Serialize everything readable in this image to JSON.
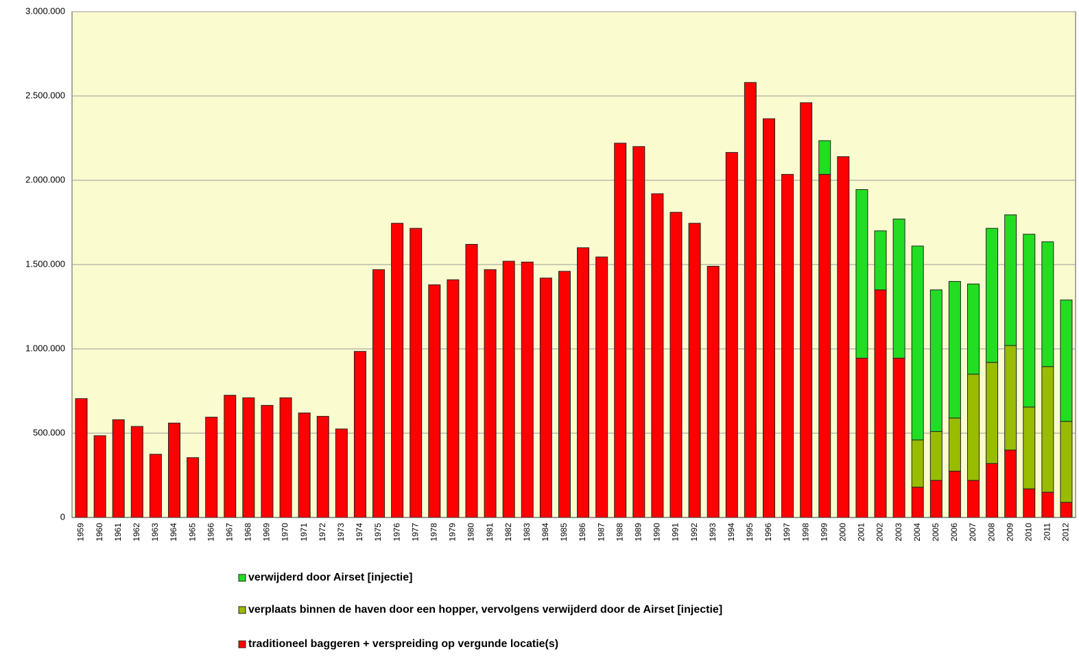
{
  "chart_data": {
    "type": "bar",
    "stacked": true,
    "categories": [
      "1959",
      "1960",
      "1961",
      "1962",
      "1963",
      "1964",
      "1965",
      "1966",
      "1967",
      "1968",
      "1969",
      "1970",
      "1971",
      "1972",
      "1973",
      "1974",
      "1975",
      "1976",
      "1977",
      "1978",
      "1979",
      "1980",
      "1981",
      "1982",
      "1983",
      "1984",
      "1985",
      "1986",
      "1987",
      "1988",
      "1989",
      "1990",
      "1991",
      "1992",
      "1993",
      "1994",
      "1995",
      "1996",
      "1997",
      "1998",
      "1999",
      "2000",
      "2001",
      "2002",
      "2003",
      "2004",
      "2005",
      "2006",
      "2007",
      "2008",
      "2009",
      "2010",
      "2011",
      "2012"
    ],
    "series": [
      {
        "name": "traditioneel baggeren + verspreiding op vergunde locatie(s)",
        "color": "#ff0000",
        "values": [
          705000,
          485000,
          580000,
          540000,
          375000,
          560000,
          355000,
          595000,
          725000,
          710000,
          665000,
          710000,
          620000,
          600000,
          525000,
          985000,
          1470000,
          1745000,
          1715000,
          1380000,
          1410000,
          1620000,
          1470000,
          1520000,
          1515000,
          1420000,
          1460000,
          1600000,
          1545000,
          2220000,
          2200000,
          1920000,
          1810000,
          1745000,
          1490000,
          2165000,
          2580000,
          2365000,
          2035000,
          2460000,
          2035000,
          2140000,
          945000,
          1350000,
          945000,
          180000,
          220000,
          275000,
          220000,
          320000,
          400000,
          170000,
          150000,
          90000
        ]
      },
      {
        "name": "verplaats binnen de haven door een hopper, vervolgens verwijderd door de Airset [injectie]",
        "color": "#99bb00",
        "values": [
          null,
          null,
          null,
          null,
          null,
          null,
          null,
          null,
          null,
          null,
          null,
          null,
          null,
          null,
          null,
          null,
          null,
          null,
          null,
          null,
          null,
          null,
          null,
          null,
          null,
          null,
          null,
          null,
          null,
          null,
          null,
          null,
          null,
          null,
          null,
          null,
          null,
          null,
          null,
          null,
          null,
          null,
          null,
          null,
          null,
          280000,
          290000,
          315000,
          630000,
          600000,
          620000,
          485000,
          745000,
          480000
        ]
      },
      {
        "name": "verwijderd door Airset [injectie]",
        "color": "#22dd22",
        "values": [
          null,
          null,
          null,
          null,
          null,
          null,
          null,
          null,
          null,
          null,
          null,
          null,
          null,
          null,
          null,
          null,
          null,
          null,
          null,
          null,
          null,
          null,
          null,
          null,
          null,
          null,
          null,
          null,
          null,
          null,
          null,
          null,
          null,
          null,
          null,
          null,
          null,
          null,
          null,
          null,
          200000,
          null,
          1000000,
          350000,
          825000,
          1150000,
          840000,
          810000,
          535000,
          795000,
          775000,
          1025000,
          740000,
          720000
        ]
      }
    ],
    "ylim": [
      0,
      3000000
    ],
    "yticks": [
      0,
      {
        "value": 500000,
        "label": "500.000"
      },
      {
        "value": 1000000,
        "label": "1.000.000"
      },
      {
        "value": 1500000,
        "label": "1.500.000"
      },
      {
        "value": 2000000,
        "label": "2.000.000"
      },
      {
        "value": 2500000,
        "label": "2.500.000"
      },
      {
        "value": 3000000,
        "label": "3.000.000"
      }
    ],
    "grid": true,
    "background": "#fbfbd0",
    "legend": "bottom"
  }
}
